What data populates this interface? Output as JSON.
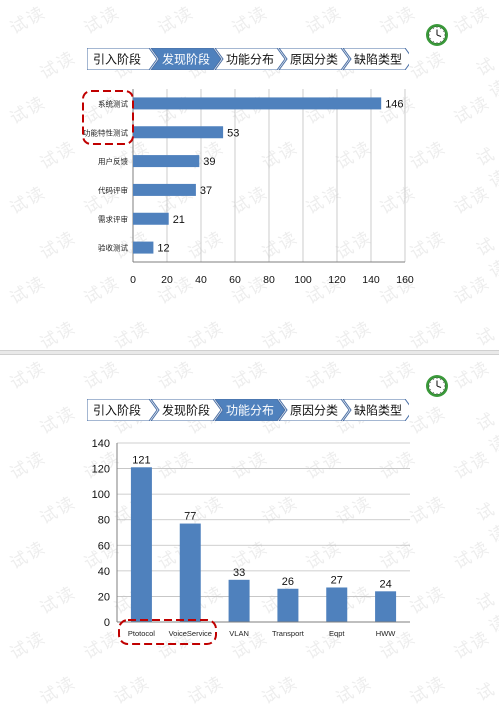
{
  "watermark_text": "试读",
  "steps": [
    "引入阶段",
    "发现阶段",
    "功能分布",
    "原因分类",
    "缺陷类型"
  ],
  "colors": {
    "bar": "#4f81bd",
    "step_active": "#4f81bd",
    "step_inactive": "#ffffff",
    "step_border": "#4a6fa5",
    "highlight": "#c00000",
    "grid": "#bfbfbf",
    "clock": "#3a9a3a"
  },
  "slides": [
    {
      "active_step": 1,
      "icon": "clock-icon",
      "chart_data": {
        "type": "bar",
        "orientation": "horizontal",
        "categories": [
          "系统测试",
          "功能特性测试",
          "用户反馈",
          "代码评审",
          "需求评审",
          "验收测试"
        ],
        "values": [
          146,
          53,
          39,
          37,
          21,
          12
        ],
        "xlim": [
          0,
          160
        ],
        "x_ticks": [
          0,
          20,
          40,
          60,
          80,
          100,
          120,
          140,
          160
        ],
        "grid": "vertical",
        "highlighted_categories": [
          "系统测试",
          "功能特性测试"
        ]
      }
    },
    {
      "active_step": 2,
      "icon": "clock-icon",
      "chart_data": {
        "type": "bar",
        "orientation": "vertical",
        "categories": [
          "Ptotocol",
          "VoiceService",
          "VLAN",
          "Transport",
          "Eqpt",
          "HWW"
        ],
        "values": [
          121,
          77,
          33,
          26,
          27,
          24
        ],
        "ylim": [
          0,
          140
        ],
        "y_ticks": [
          0,
          20,
          40,
          60,
          80,
          100,
          120,
          140
        ],
        "grid": "horizontal",
        "highlighted_categories": [
          "Ptotocol",
          "VoiceService"
        ]
      }
    }
  ]
}
